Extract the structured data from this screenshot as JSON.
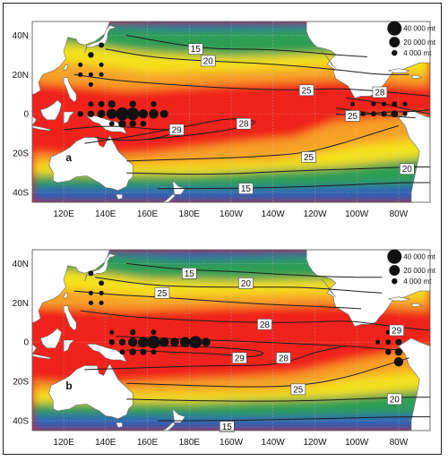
{
  "longitude_labels": [
    "120E",
    "140E",
    "160E",
    "180E",
    "160W",
    "140W",
    "120W",
    "100W",
    "80W"
  ],
  "latitude_labels": [
    "40N",
    "20N",
    "0",
    "20S",
    "40S"
  ],
  "legend": [
    {
      "label": "40 000 mt",
      "catch_mt": 40000
    },
    {
      "label": "20 000 mt",
      "catch_mt": 20000
    },
    {
      "label": "4 000 mt",
      "catch_mt": 4000
    }
  ],
  "colors": {
    "warm": "#f0241c",
    "orange": "#f7a127",
    "yellow": "#f4e11c",
    "green": "#2f9e55",
    "blue": "#2f5fb8",
    "land": "#ffffff",
    "contour": "#1c1c1c"
  },
  "panels": [
    {
      "label": "a",
      "contour_labels": [
        {
          "text": "15",
          "lon": 183,
          "lat": 33
        },
        {
          "text": "20",
          "lon": 189,
          "lat": 27
        },
        {
          "text": "25",
          "lon": 236,
          "lat": 12
        },
        {
          "text": "28",
          "lon": 271,
          "lat": 11
        },
        {
          "text": "25",
          "lon": 258,
          "lat": -1
        },
        {
          "text": "29",
          "lon": 174,
          "lat": -8
        },
        {
          "text": "28",
          "lon": 206,
          "lat": -5
        },
        {
          "text": "25",
          "lon": 237,
          "lat": -22
        },
        {
          "text": "20",
          "lon": 284,
          "lat": -28
        },
        {
          "text": "15",
          "lon": 207,
          "lat": -38
        }
      ],
      "catch_points": [
        {
          "lon": 143,
          "lat": 0,
          "mt": 18000
        },
        {
          "lon": 148,
          "lat": 0,
          "mt": 32000
        },
        {
          "lon": 153,
          "lat": 0,
          "mt": 30000
        },
        {
          "lon": 158,
          "lat": 0,
          "mt": 14000
        },
        {
          "lon": 163,
          "lat": 0,
          "mt": 15000
        },
        {
          "lon": 168,
          "lat": 0,
          "mt": 10000
        },
        {
          "lon": 138,
          "lat": 0,
          "mt": 10000
        },
        {
          "lon": 133,
          "lat": 0,
          "mt": 6000
        },
        {
          "lon": 128,
          "lat": 0,
          "mt": 4000
        },
        {
          "lon": 138,
          "lat": 5,
          "mt": 5000
        },
        {
          "lon": 143,
          "lat": 5,
          "mt": 8000
        },
        {
          "lon": 153,
          "lat": 5,
          "mt": 6000
        },
        {
          "lon": 163,
          "lat": 5,
          "mt": 4000
        },
        {
          "lon": 133,
          "lat": 5,
          "mt": 3000
        },
        {
          "lon": 148,
          "lat": -5,
          "mt": 9000
        },
        {
          "lon": 153,
          "lat": -5,
          "mt": 6000
        },
        {
          "lon": 158,
          "lat": -5,
          "mt": 4000
        },
        {
          "lon": 143,
          "lat": -5,
          "mt": 3000
        },
        {
          "lon": 138,
          "lat": 35,
          "mt": 3000
        },
        {
          "lon": 133,
          "lat": 30,
          "mt": 4000
        },
        {
          "lon": 128,
          "lat": 25,
          "mt": 2000
        },
        {
          "lon": 138,
          "lat": 25,
          "mt": 2000
        },
        {
          "lon": 128,
          "lat": 20,
          "mt": 2000
        },
        {
          "lon": 133,
          "lat": 20,
          "mt": 2000
        },
        {
          "lon": 138,
          "lat": 20,
          "mt": 2000
        },
        {
          "lon": 133,
          "lat": 15,
          "mt": 2000
        },
        {
          "lon": 278,
          "lat": 0,
          "mt": 7000
        },
        {
          "lon": 273,
          "lat": 0,
          "mt": 4000
        },
        {
          "lon": 268,
          "lat": 0,
          "mt": 3000
        },
        {
          "lon": 278,
          "lat": 5,
          "mt": 3000
        },
        {
          "lon": 273,
          "lat": 5,
          "mt": 2000
        },
        {
          "lon": 263,
          "lat": 0,
          "mt": 2000
        },
        {
          "lon": 258,
          "lat": 5,
          "mt": 2000
        },
        {
          "lon": 283,
          "lat": 0,
          "mt": 2000
        },
        {
          "lon": 268,
          "lat": 5,
          "mt": 2000
        },
        {
          "lon": 283,
          "lat": 5,
          "mt": 2000
        }
      ]
    },
    {
      "label": "b",
      "contour_labels": [
        {
          "text": "15",
          "lon": 180,
          "lat": 35
        },
        {
          "text": "20",
          "lon": 207,
          "lat": 30
        },
        {
          "text": "25",
          "lon": 167,
          "lat": 25
        },
        {
          "text": "28",
          "lon": 216,
          "lat": 9
        },
        {
          "text": "29",
          "lon": 279,
          "lat": 6
        },
        {
          "text": "29",
          "lon": 204,
          "lat": -8
        },
        {
          "text": "28",
          "lon": 225,
          "lat": -8
        },
        {
          "text": "25",
          "lon": 232,
          "lat": -24
        },
        {
          "text": "20",
          "lon": 278,
          "lat": -29
        },
        {
          "text": "15",
          "lon": 198,
          "lat": -43
        }
      ],
      "catch_points": [
        {
          "lon": 148,
          "lat": 0,
          "mt": 6000
        },
        {
          "lon": 153,
          "lat": 0,
          "mt": 14000
        },
        {
          "lon": 158,
          "lat": 0,
          "mt": 20000
        },
        {
          "lon": 163,
          "lat": 0,
          "mt": 30000
        },
        {
          "lon": 168,
          "lat": 0,
          "mt": 15000
        },
        {
          "lon": 173,
          "lat": 0,
          "mt": 12000
        },
        {
          "lon": 178,
          "lat": 0,
          "mt": 18000
        },
        {
          "lon": 183,
          "lat": 0,
          "mt": 28000
        },
        {
          "lon": 188,
          "lat": 0,
          "mt": 12000
        },
        {
          "lon": 143,
          "lat": 0,
          "mt": 4000
        },
        {
          "lon": 153,
          "lat": -5,
          "mt": 6000
        },
        {
          "lon": 158,
          "lat": -5,
          "mt": 5000
        },
        {
          "lon": 148,
          "lat": -5,
          "mt": 3000
        },
        {
          "lon": 163,
          "lat": -5,
          "mt": 3000
        },
        {
          "lon": 153,
          "lat": 5,
          "mt": 4000
        },
        {
          "lon": 163,
          "lat": 5,
          "mt": 3000
        },
        {
          "lon": 143,
          "lat": 5,
          "mt": 2000
        },
        {
          "lon": 133,
          "lat": 35,
          "mt": 3000
        },
        {
          "lon": 138,
          "lat": 30,
          "mt": 3000
        },
        {
          "lon": 133,
          "lat": 25,
          "mt": 2000
        },
        {
          "lon": 138,
          "lat": 25,
          "mt": 2000
        },
        {
          "lon": 133,
          "lat": 20,
          "mt": 2000
        },
        {
          "lon": 138,
          "lat": 20,
          "mt": 2000
        },
        {
          "lon": 280,
          "lat": -10,
          "mt": 14000
        },
        {
          "lon": 280,
          "lat": -5,
          "mt": 8000
        },
        {
          "lon": 280,
          "lat": 0,
          "mt": 5000
        },
        {
          "lon": 275,
          "lat": 0,
          "mt": 3000
        },
        {
          "lon": 275,
          "lat": -5,
          "mt": 4000
        },
        {
          "lon": 270,
          "lat": 0,
          "mt": 2000
        },
        {
          "lon": 280,
          "lat": 5,
          "mt": 3000
        },
        {
          "lon": 275,
          "lat": 5,
          "mt": 2000
        }
      ]
    }
  ]
}
